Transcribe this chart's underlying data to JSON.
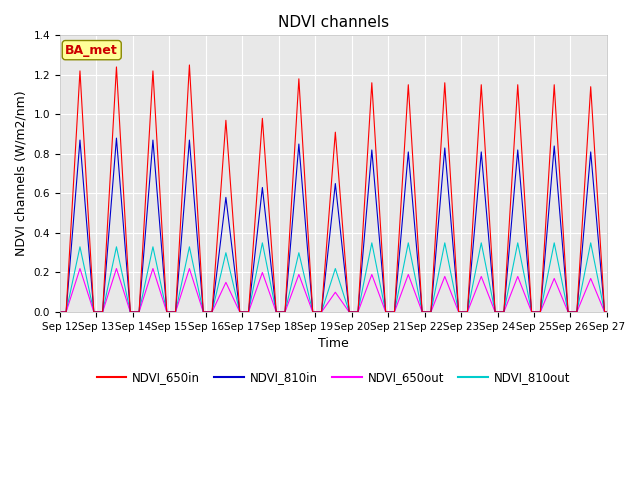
{
  "title": "NDVI channels",
  "ylabel": "NDVI channels (W/m2/nm)",
  "xlabel": "Time",
  "annotation_text": "BA_met",
  "ylim": [
    0,
    1.4
  ],
  "series": {
    "NDVI_650in": {
      "color": "#ff0000",
      "peaks": [
        1.22,
        1.24,
        1.22,
        1.25,
        0.97,
        0.98,
        1.18,
        0.91,
        1.16,
        1.15,
        1.16,
        1.15,
        1.15,
        1.15,
        1.14
      ]
    },
    "NDVI_810in": {
      "color": "#0000cc",
      "peaks": [
        0.87,
        0.88,
        0.87,
        0.87,
        0.58,
        0.63,
        0.85,
        0.65,
        0.82,
        0.81,
        0.83,
        0.81,
        0.82,
        0.84,
        0.81
      ]
    },
    "NDVI_650out": {
      "color": "#ff00ff",
      "peaks": [
        0.22,
        0.22,
        0.22,
        0.22,
        0.15,
        0.2,
        0.19,
        0.1,
        0.19,
        0.19,
        0.18,
        0.18,
        0.18,
        0.17,
        0.17
      ]
    },
    "NDVI_810out": {
      "color": "#00cccc",
      "peaks": [
        0.33,
        0.33,
        0.33,
        0.33,
        0.3,
        0.35,
        0.3,
        0.22,
        0.35,
        0.35,
        0.35,
        0.35,
        0.35,
        0.35,
        0.35
      ]
    }
  },
  "xtick_labels": [
    "Sep 12",
    "Sep 13",
    "Sep 14",
    "Sep 15",
    "Sep 16",
    "Sep 17",
    "Sep 18",
    "Sep 19",
    "Sep 20",
    "Sep 21",
    "Sep 22",
    "Sep 23",
    "Sep 24",
    "Sep 25",
    "Sep 26",
    "Sep 27"
  ],
  "fig_bg_color": "#ffffff",
  "plot_bg_color": "#e8e8e8",
  "grid_color": "#ffffff",
  "title_fontsize": 11,
  "label_fontsize": 9,
  "tick_fontsize": 7.5,
  "legend_fontsize": 8.5
}
